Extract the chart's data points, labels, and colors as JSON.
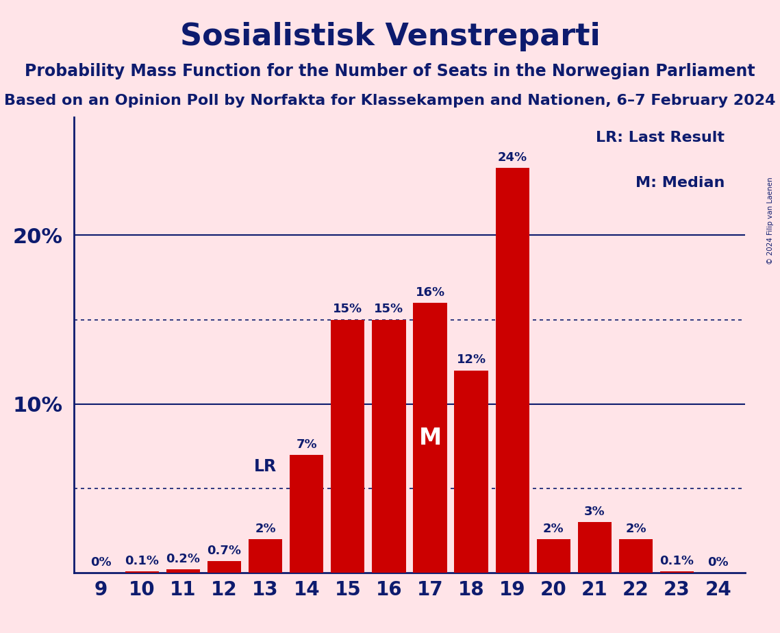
{
  "title": "Sosialistisk Venstreparti",
  "subtitle1": "Probability Mass Function for the Number of Seats in the Norwegian Parliament",
  "subtitle2": "Based on an Opinion Poll by Norfakta for Klassekampen and Nationen, 6–7 February 2024",
  "copyright": "© 2024 Filip van Laenen",
  "seats": [
    9,
    10,
    11,
    12,
    13,
    14,
    15,
    16,
    17,
    18,
    19,
    20,
    21,
    22,
    23,
    24
  ],
  "probabilities": [
    0.0,
    0.1,
    0.2,
    0.7,
    2.0,
    7.0,
    15.0,
    15.0,
    16.0,
    12.0,
    24.0,
    2.0,
    3.0,
    2.0,
    0.1,
    0.0
  ],
  "bar_color": "#CC0000",
  "background_color": "#FFE4E8",
  "text_color": "#0D1B6E",
  "last_result_seat": 13,
  "median_seat": 17,
  "legend_lr": "LR: Last Result",
  "legend_m": "M: Median",
  "dotted_line_values": [
    5.0,
    15.0
  ],
  "solid_line_values": [
    10.0,
    20.0
  ],
  "ylim": [
    0,
    27
  ],
  "yticks": [
    10,
    20
  ],
  "bar_width": 0.82
}
